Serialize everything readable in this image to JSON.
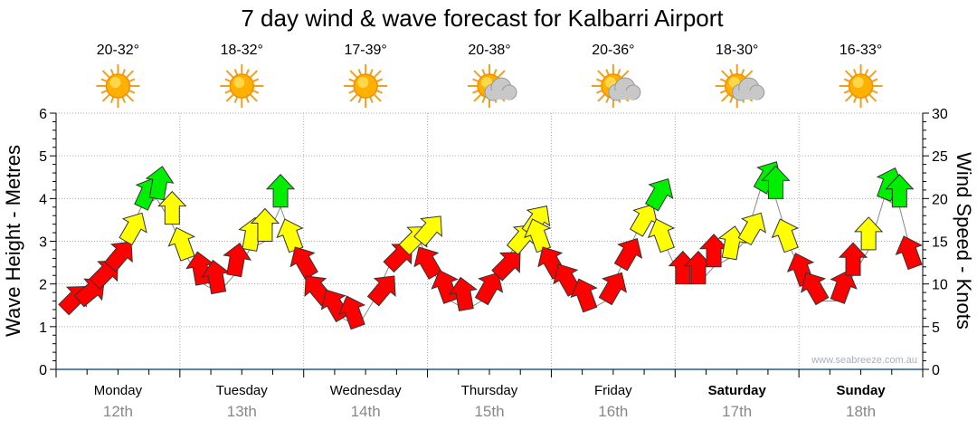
{
  "chart_data": {
    "type": "scatter",
    "title": "7 day wind & wave forecast for Kalbarri Airport",
    "ylabel": "Wave Height - Metres",
    "y2label": "Wind Speed - Knots",
    "ylim": [
      0,
      6
    ],
    "y2lim": [
      0,
      30
    ],
    "yticks": [
      "0",
      "1",
      "2",
      "3",
      "4",
      "5",
      "6"
    ],
    "y2ticks": [
      "0",
      "5",
      "10",
      "15",
      "20",
      "25",
      "30"
    ],
    "grid": true,
    "watermark": "www.seabreeze.com.au",
    "days": [
      {
        "name": "Monday",
        "date": "12th",
        "temp": "20-32°",
        "icon": "sun-icon",
        "bold": false
      },
      {
        "name": "Tuesday",
        "date": "13th",
        "temp": "18-32°",
        "icon": "sun-icon",
        "bold": false
      },
      {
        "name": "Wednesday",
        "date": "14th",
        "temp": "17-39°",
        "icon": "sun-icon",
        "bold": false
      },
      {
        "name": "Thursday",
        "date": "15th",
        "temp": "20-38°",
        "icon": "sun-cloud-icon",
        "bold": false
      },
      {
        "name": "Friday",
        "date": "16th",
        "temp": "20-36°",
        "icon": "sun-cloud-icon",
        "bold": false
      },
      {
        "name": "Saturday",
        "date": "17th",
        "temp": "18-30°",
        "icon": "sun-cloud-icon",
        "bold": true
      },
      {
        "name": "Sunday",
        "date": "18th",
        "temp": "16-33°",
        "icon": "sun-icon",
        "bold": true
      }
    ],
    "wind_series_hours": [
      0,
      3,
      6,
      9,
      12,
      15,
      18,
      21
    ],
    "wind_speed_knots": [
      [
        7,
        8,
        10,
        12,
        15,
        19,
        20,
        17
      ],
      [
        13,
        10,
        9,
        11,
        14,
        15,
        19,
        14
      ],
      [
        11,
        8,
        6,
        5,
        8,
        12,
        14,
        15
      ],
      [
        11,
        8,
        7,
        8,
        11,
        14,
        16,
        14
      ],
      [
        11,
        9,
        7,
        8,
        12,
        16,
        19,
        14
      ],
      [
        10,
        10,
        12,
        13,
        15,
        21,
        20,
        14
      ],
      [
        10,
        8,
        8,
        11,
        14,
        20,
        19,
        12
      ]
    ],
    "wind_direction_deg": [
      [
        45,
        50,
        45,
        40,
        30,
        25,
        10,
        0
      ],
      [
        -20,
        -10,
        -10,
        10,
        10,
        0,
        0,
        -20
      ],
      [
        -30,
        -40,
        -30,
        -20,
        40,
        45,
        45,
        40
      ],
      [
        -30,
        -20,
        -10,
        30,
        45,
        40,
        35,
        -20
      ],
      [
        -30,
        -30,
        -20,
        30,
        30,
        30,
        30,
        -20
      ],
      [
        0,
        0,
        0,
        10,
        30,
        30,
        0,
        -20
      ],
      [
        -20,
        -30,
        20,
        0,
        0,
        20,
        0,
        -20
      ]
    ],
    "colors": {
      "low": "#ff0000",
      "mid": "#ffff00",
      "high": "#00ee00",
      "thresholds_knots": [
        12,
        17
      ]
    }
  }
}
